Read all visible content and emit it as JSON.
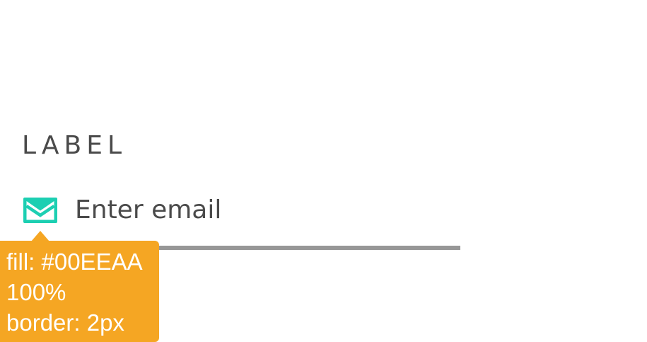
{
  "form": {
    "label": "LABEL",
    "email_input": {
      "value": "",
      "placeholder": "Enter email",
      "icon": "mail-icon"
    }
  },
  "annotation": {
    "lines": [
      "fill: #00EEAA",
      "100%",
      "border: 2px"
    ]
  },
  "colors": {
    "icon": "#1ccfb2",
    "text": "#4a4a4a",
    "underline": "#979797",
    "annotation_bg": "#f5a623",
    "annotation_text": "#ffffff"
  }
}
